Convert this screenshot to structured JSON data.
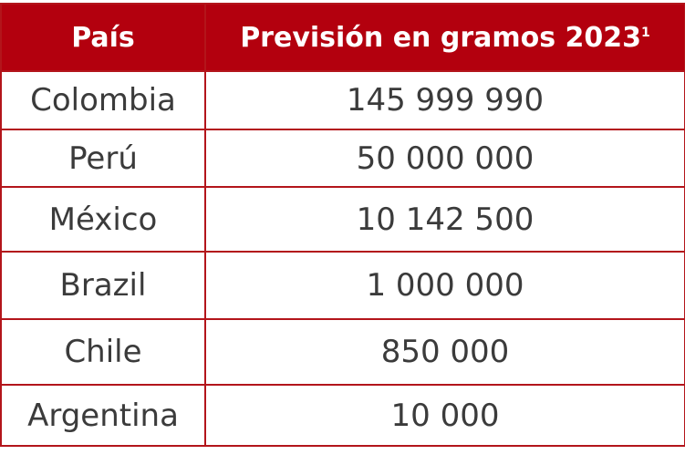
{
  "header": {
    "country_label": "País",
    "forecast_label": "Previsión en gramos 2023",
    "footnote_mark": "1",
    "colors": {
      "header_bg": "#b3000e",
      "border": "#b3151b",
      "header_text": "#ffffff",
      "body_text": "#3b3b3b"
    }
  },
  "rows": [
    {
      "country": "Colombia",
      "value": "145 999 990"
    },
    {
      "country": "Perú",
      "value": "50 000 000"
    },
    {
      "country": "México",
      "value": "10 142 500"
    },
    {
      "country": "Brazil",
      "value": "1 000 000"
    },
    {
      "country": "Chile",
      "value": "850 000"
    },
    {
      "country": "Argentina",
      "value": "10 000"
    }
  ]
}
